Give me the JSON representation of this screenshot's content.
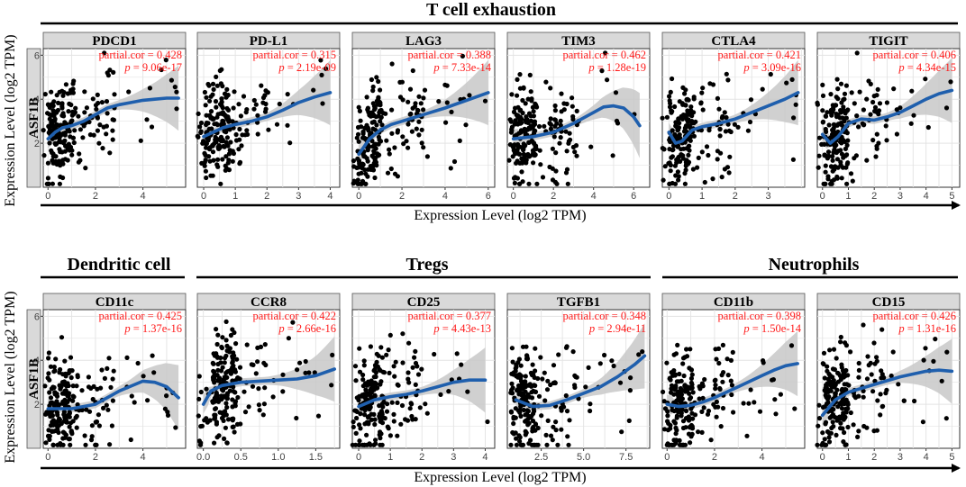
{
  "figure": {
    "row_labels": [
      "T cell exhaustion",
      "Dendritic cell",
      "Tregs",
      "Neutrophils"
    ],
    "y_axis_title": "Expression Level (log2 TPM)",
    "x_axis_title": "Expression Level (log2 TPM)",
    "y_gene": "ASF1B",
    "colors": {
      "points": "#000000",
      "fit_line": "#1f5fad",
      "ribbon": "#c8c8c8",
      "stats": "#ff1a1a",
      "strip": "#d9d9d9",
      "grid": "#e3e3e3"
    }
  },
  "chart_data": [
    {
      "type": "scatter",
      "gene": "PDCD1",
      "group": "T cell exhaustion",
      "partial_cor": "partial.cor = 0.428",
      "p_value": "p = 9.06e-17",
      "xlim": [
        -0.2,
        5.8
      ],
      "ylim": [
        0,
        6.3
      ],
      "xticks": [
        0,
        2,
        4
      ],
      "yticks": [
        2,
        4,
        6
      ],
      "fit": [
        [
          0,
          2.2
        ],
        [
          0.3,
          2.5
        ],
        [
          0.6,
          2.7
        ],
        [
          1,
          2.8
        ],
        [
          1.5,
          3.0
        ],
        [
          2,
          3.3
        ],
        [
          2.5,
          3.6
        ],
        [
          3,
          3.75
        ],
        [
          3.5,
          3.85
        ],
        [
          4,
          3.95
        ],
        [
          4.5,
          4.0
        ],
        [
          5,
          4.05
        ],
        [
          5.5,
          4.05
        ]
      ]
    },
    {
      "type": "scatter",
      "gene": "PD-L1",
      "group": "T cell exhaustion",
      "partial_cor": "partial.cor = 0.315",
      "p_value": "p = 2.19e-09",
      "xlim": [
        -0.2,
        4.3
      ],
      "ylim": [
        0,
        6.3
      ],
      "xticks": [
        0,
        1,
        2,
        3,
        4
      ],
      "yticks": [
        2,
        4,
        6
      ],
      "fit": [
        [
          0,
          2.3
        ],
        [
          0.3,
          2.5
        ],
        [
          0.6,
          2.7
        ],
        [
          1,
          2.85
        ],
        [
          1.5,
          3.0
        ],
        [
          2,
          3.2
        ],
        [
          2.5,
          3.5
        ],
        [
          3,
          3.85
        ],
        [
          3.5,
          4.1
        ],
        [
          4,
          4.3
        ]
      ]
    },
    {
      "type": "scatter",
      "gene": "LAG3",
      "group": "T cell exhaustion",
      "partial_cor": "partial.cor = 0.388",
      "p_value": "p = 7.33e-14",
      "xlim": [
        -0.3,
        6.3
      ],
      "ylim": [
        0,
        6.3
      ],
      "xticks": [
        0,
        2,
        4,
        6
      ],
      "yticks": [
        2,
        4,
        6
      ],
      "fit": [
        [
          0,
          1.5
        ],
        [
          0.5,
          2.2
        ],
        [
          1,
          2.6
        ],
        [
          1.5,
          2.85
        ],
        [
          2,
          3.0
        ],
        [
          3,
          3.3
        ],
        [
          4,
          3.6
        ],
        [
          5,
          3.95
        ],
        [
          6,
          4.3
        ]
      ]
    },
    {
      "type": "scatter",
      "gene": "TIM3",
      "group": "T cell exhaustion",
      "partial_cor": "partial.cor = 0.462",
      "p_value": "p = 1.28e-19",
      "xlim": [
        -0.3,
        6.8
      ],
      "ylim": [
        0,
        6.3
      ],
      "xticks": [
        0,
        2,
        4,
        6
      ],
      "yticks": [
        2,
        4,
        6
      ],
      "fit": [
        [
          0,
          2.2
        ],
        [
          1,
          2.3
        ],
        [
          2,
          2.5
        ],
        [
          3,
          2.9
        ],
        [
          4,
          3.4
        ],
        [
          4.5,
          3.65
        ],
        [
          5,
          3.7
        ],
        [
          5.5,
          3.6
        ],
        [
          6,
          3.2
        ],
        [
          6.3,
          2.8
        ]
      ]
    },
    {
      "type": "scatter",
      "gene": "CTLA4",
      "group": "T cell exhaustion",
      "partial_cor": "partial.cor = 0.421",
      "p_value": "p = 3.09e-16",
      "xlim": [
        -0.2,
        4.1
      ],
      "ylim": [
        0,
        6.3
      ],
      "xticks": [
        0,
        1,
        2,
        3
      ],
      "yticks": [
        2,
        4,
        6
      ],
      "fit": [
        [
          0,
          2.5
        ],
        [
          0.2,
          2.0
        ],
        [
          0.4,
          2.1
        ],
        [
          0.7,
          2.6
        ],
        [
          1,
          2.75
        ],
        [
          1.5,
          2.9
        ],
        [
          2,
          3.1
        ],
        [
          2.5,
          3.4
        ],
        [
          3,
          3.7
        ],
        [
          3.5,
          4.0
        ],
        [
          3.9,
          4.3
        ]
      ]
    },
    {
      "type": "scatter",
      "gene": "TIGIT",
      "group": "T cell exhaustion",
      "partial_cor": "partial.cor = 0.406",
      "p_value": "p = 4.34e-15",
      "xlim": [
        -0.2,
        5.3
      ],
      "ylim": [
        0,
        6.3
      ],
      "xticks": [
        0,
        1,
        2,
        3,
        4,
        5
      ],
      "yticks": [
        2,
        4,
        6
      ],
      "fit": [
        [
          0,
          2.4
        ],
        [
          0.3,
          2.0
        ],
        [
          0.6,
          2.3
        ],
        [
          1,
          2.9
        ],
        [
          1.5,
          3.1
        ],
        [
          2,
          3.05
        ],
        [
          2.5,
          3.2
        ],
        [
          3,
          3.4
        ],
        [
          3.5,
          3.7
        ],
        [
          4,
          4.0
        ],
        [
          4.5,
          4.25
        ],
        [
          5,
          4.4
        ]
      ]
    },
    {
      "type": "scatter",
      "gene": "CD11c",
      "group": "Dendritic cell",
      "partial_cor": "partial.cor = 0.425",
      "p_value": "p = 1.37e-16",
      "xlim": [
        -0.2,
        5.8
      ],
      "ylim": [
        0,
        6.3
      ],
      "xticks": [
        0,
        2,
        4
      ],
      "yticks": [
        2,
        4,
        6
      ],
      "fit": [
        [
          0,
          1.8
        ],
        [
          1,
          1.8
        ],
        [
          2,
          2.0
        ],
        [
          3,
          2.6
        ],
        [
          4,
          3.05
        ],
        [
          4.5,
          3.0
        ],
        [
          5,
          2.8
        ],
        [
          5.5,
          2.3
        ]
      ]
    },
    {
      "type": "scatter",
      "gene": "CCR8",
      "group": "Tregs",
      "partial_cor": "partial.cor = 0.422",
      "p_value": "p = 2.66e-16",
      "xlim": [
        -0.08,
        1.82
      ],
      "ylim": [
        0,
        6.3
      ],
      "xticks": [
        0,
        0.5,
        1.0,
        1.5
      ],
      "xtick_labels": [
        "0.0",
        "0.5",
        "1.0",
        "1.5"
      ],
      "yticks": [
        2,
        4,
        6
      ],
      "fit": [
        [
          0,
          2.0
        ],
        [
          0.1,
          2.6
        ],
        [
          0.25,
          2.85
        ],
        [
          0.5,
          3.0
        ],
        [
          0.75,
          3.05
        ],
        [
          1,
          3.1
        ],
        [
          1.25,
          3.15
        ],
        [
          1.5,
          3.3
        ],
        [
          1.75,
          3.6
        ]
      ]
    },
    {
      "type": "scatter",
      "gene": "CD25",
      "group": "Tregs",
      "partial_cor": "partial.cor = 0.377",
      "p_value": "p = 4.43e-13",
      "xlim": [
        -0.2,
        4.3
      ],
      "ylim": [
        0,
        6.3
      ],
      "xticks": [
        0,
        1,
        2,
        3,
        4
      ],
      "yticks": [
        2,
        4,
        6
      ],
      "fit": [
        [
          0,
          1.9
        ],
        [
          0.5,
          2.2
        ],
        [
          1,
          2.35
        ],
        [
          1.5,
          2.45
        ],
        [
          2,
          2.6
        ],
        [
          2.5,
          2.8
        ],
        [
          3,
          3.0
        ],
        [
          3.5,
          3.1
        ],
        [
          4,
          3.1
        ]
      ]
    },
    {
      "type": "scatter",
      "gene": "TGFB1",
      "group": "Tregs",
      "partial_cor": "partial.cor = 0.348",
      "p_value": "p = 2.94e-11",
      "xlim": [
        0.5,
        8.9
      ],
      "ylim": [
        0,
        6.3
      ],
      "xticks": [
        2.5,
        5.0,
        7.5
      ],
      "xtick_labels": [
        "2.5",
        "5.0",
        "7.5"
      ],
      "yticks": [
        2,
        4,
        6
      ],
      "fit": [
        [
          1,
          2.2
        ],
        [
          2,
          1.9
        ],
        [
          3,
          1.95
        ],
        [
          4,
          2.2
        ],
        [
          5,
          2.5
        ],
        [
          6,
          2.8
        ],
        [
          7,
          3.25
        ],
        [
          8,
          3.8
        ],
        [
          8.6,
          4.2
        ]
      ]
    },
    {
      "type": "scatter",
      "gene": "CD11b",
      "group": "Neutrophils",
      "partial_cor": "partial.cor = 0.398",
      "p_value": "p = 1.50e-14",
      "xlim": [
        -0.2,
        5.8
      ],
      "ylim": [
        0,
        6.3
      ],
      "xticks": [
        0,
        2,
        4
      ],
      "yticks": [
        2,
        4,
        6
      ],
      "fit": [
        [
          0,
          2.0
        ],
        [
          0.5,
          1.9
        ],
        [
          1,
          1.95
        ],
        [
          1.5,
          2.1
        ],
        [
          2,
          2.3
        ],
        [
          3,
          2.8
        ],
        [
          4,
          3.3
        ],
        [
          4.5,
          3.55
        ],
        [
          5,
          3.75
        ],
        [
          5.5,
          3.85
        ]
      ]
    },
    {
      "type": "scatter",
      "gene": "CD15",
      "group": "Neutrophils",
      "partial_cor": "partial.cor = 0.426",
      "p_value": "p = 1.31e-16",
      "xlim": [
        -0.2,
        5.3
      ],
      "ylim": [
        0,
        6.3
      ],
      "xticks": [
        0,
        1,
        2,
        3,
        4,
        5
      ],
      "yticks": [
        2,
        4,
        6
      ],
      "fit": [
        [
          0,
          1.5
        ],
        [
          0.5,
          2.2
        ],
        [
          1,
          2.55
        ],
        [
          2,
          2.9
        ],
        [
          3,
          3.25
        ],
        [
          4,
          3.5
        ],
        [
          4.5,
          3.55
        ],
        [
          5,
          3.5
        ]
      ]
    }
  ]
}
